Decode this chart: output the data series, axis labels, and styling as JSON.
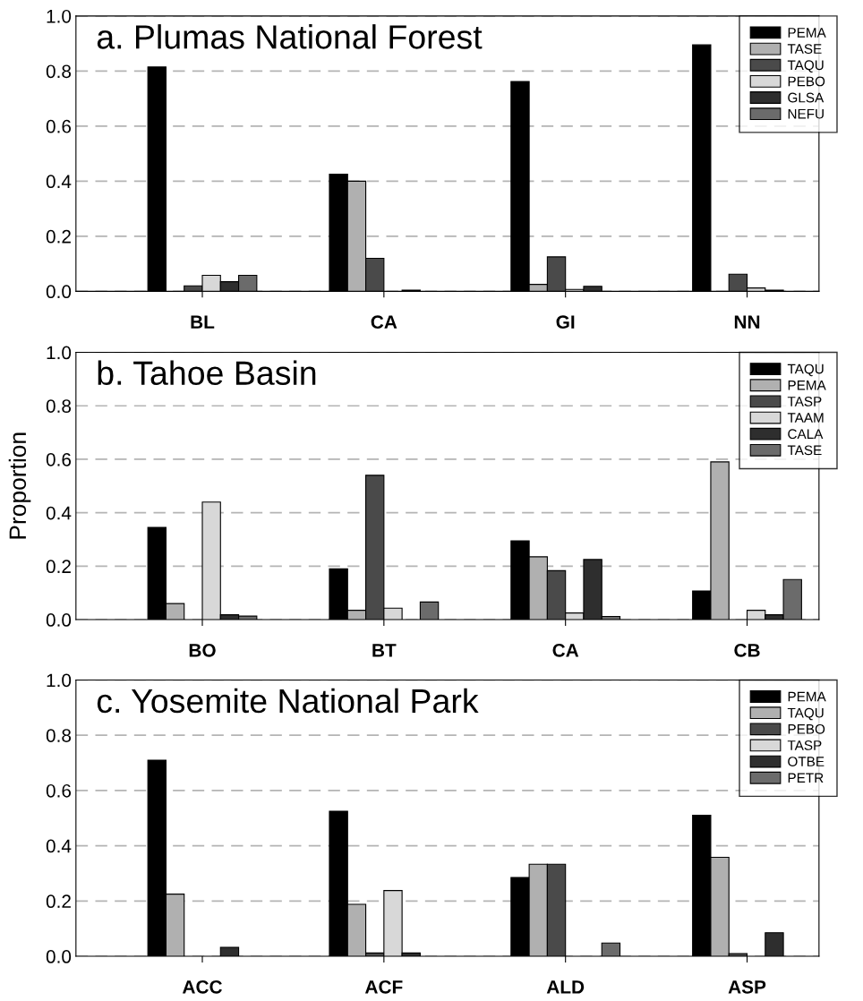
{
  "chart_data": [
    {
      "type": "bar",
      "title": "a. Plumas National Forest",
      "categories": [
        "BL",
        "CA",
        "GI",
        "NN"
      ],
      "ylim": [
        0,
        1.0
      ],
      "yticks": [
        {
          "value": 0,
          "label": "0.0"
        },
        {
          "value": 0.2,
          "label": "0.2"
        },
        {
          "value": 0.4,
          "label": "0.4"
        },
        {
          "value": 0.6,
          "label": "0.6"
        },
        {
          "value": 0.8,
          "label": "0.8"
        },
        {
          "value": 1.0,
          "label": "1.0"
        }
      ],
      "grid": "y",
      "legend": "top right",
      "series": [
        {
          "name": "PEMA",
          "color": "#000000",
          "values": [
            0.815,
            0.425,
            0.762,
            0.895
          ]
        },
        {
          "name": "TASE",
          "color": "#b0b0b0",
          "values": [
            null,
            0.4,
            0.025,
            null
          ]
        },
        {
          "name": "TAQU",
          "color": "#4a4a4a",
          "values": [
            0.02,
            0.12,
            0.125,
            0.062
          ]
        },
        {
          "name": "PEBO",
          "color": "#d8d8d8",
          "values": [
            0.058,
            null,
            0.007,
            0.012
          ]
        },
        {
          "name": "GLSA",
          "color": "#2e2e2e",
          "values": [
            0.035,
            0.004,
            0.018,
            0.004
          ]
        },
        {
          "name": "NEFU",
          "color": "#6b6b6b",
          "values": [
            0.058,
            null,
            null,
            null
          ]
        }
      ]
    },
    {
      "type": "bar",
      "title": "b. Tahoe Basin",
      "ylabel": "Proportion",
      "categories": [
        "BO",
        "BT",
        "CA",
        "CB"
      ],
      "ylim": [
        0,
        1.0
      ],
      "yticks": [
        {
          "value": 0,
          "label": "0.0"
        },
        {
          "value": 0.2,
          "label": "0.2"
        },
        {
          "value": 0.4,
          "label": "0.4"
        },
        {
          "value": 0.6,
          "label": "0.6"
        },
        {
          "value": 0.8,
          "label": "0.8"
        },
        {
          "value": 1.0,
          "label": "1.0"
        }
      ],
      "grid": "y",
      "legend": "top right",
      "series": [
        {
          "name": "TAQU",
          "color": "#000000",
          "values": [
            0.345,
            0.19,
            0.295,
            0.107
          ]
        },
        {
          "name": "PEMA",
          "color": "#b0b0b0",
          "values": [
            0.06,
            0.035,
            0.235,
            0.59
          ]
        },
        {
          "name": "TASP",
          "color": "#4a4a4a",
          "values": [
            null,
            0.54,
            0.183,
            null
          ]
        },
        {
          "name": "TAAM",
          "color": "#d8d8d8",
          "values": [
            0.44,
            0.043,
            0.025,
            0.035
          ]
        },
        {
          "name": "CALA",
          "color": "#2e2e2e",
          "values": [
            0.018,
            null,
            0.225,
            0.018
          ]
        },
        {
          "name": "TASE",
          "color": "#6b6b6b",
          "values": [
            0.013,
            0.066,
            0.012,
            0.15
          ]
        }
      ]
    },
    {
      "type": "bar",
      "title": "c. Yosemite National Park",
      "categories": [
        "ACC",
        "ACF",
        "ALD",
        "ASP"
      ],
      "ylim": [
        0,
        1.0
      ],
      "yticks": [
        {
          "value": 0,
          "label": "0.0"
        },
        {
          "value": 0.2,
          "label": "0.2"
        },
        {
          "value": 0.4,
          "label": "0.4"
        },
        {
          "value": 0.6,
          "label": "0.6"
        },
        {
          "value": 0.8,
          "label": "0.8"
        },
        {
          "value": 1.0,
          "label": "1.0"
        }
      ],
      "grid": "y",
      "legend": "top right",
      "series": [
        {
          "name": "PEMA",
          "color": "#000000",
          "values": [
            0.71,
            0.525,
            0.285,
            0.51
          ]
        },
        {
          "name": "TAQU",
          "color": "#b0b0b0",
          "values": [
            0.225,
            0.188,
            0.333,
            0.358
          ]
        },
        {
          "name": "PEBO",
          "color": "#4a4a4a",
          "values": [
            null,
            0.012,
            0.333,
            0.01
          ]
        },
        {
          "name": "TASP",
          "color": "#d8d8d8",
          "values": [
            null,
            0.238,
            null,
            null
          ]
        },
        {
          "name": "OTBE",
          "color": "#2e2e2e",
          "values": [
            0.032,
            0.012,
            null,
            0.085
          ]
        },
        {
          "name": "PETR",
          "color": "#6b6b6b",
          "values": [
            null,
            null,
            0.048,
            null
          ]
        }
      ]
    }
  ]
}
